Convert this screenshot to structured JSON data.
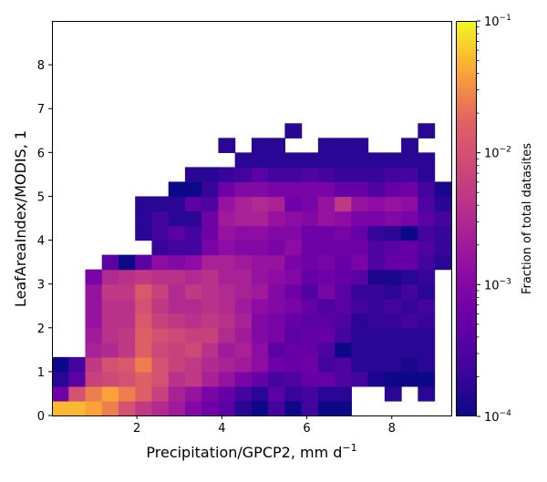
{
  "chart_data": {
    "type": "heatmap",
    "title": "",
    "xlabel": "Precipitation/GPCP2,  mm d",
    "xlabel_superscript": "−1",
    "ylabel": "LeafAreaIndex/MODIS,  1",
    "colorbar_label": "Fraction of total datasites",
    "colormap": "plasma",
    "color_scale": "log",
    "color_range": [
      0.0001,
      0.1
    ],
    "xlim": [
      0,
      9.4
    ],
    "ylim": [
      0,
      9.0
    ],
    "bin_width_x": 0.3915,
    "bin_height_y": 0.3333,
    "xticks": [
      2,
      4,
      6,
      8
    ],
    "xtick_labels": [
      "2",
      "4",
      "6",
      "8"
    ],
    "yticks": [
      0,
      1,
      2,
      3,
      4,
      5,
      6,
      7,
      8
    ],
    "ytick_labels": [
      "0",
      "1",
      "2",
      "3",
      "4",
      "5",
      "6",
      "7",
      "8"
    ],
    "colorbar_ticks": [
      0.0001,
      0.001,
      0.01,
      0.1
    ],
    "colorbar_tick_labels": [
      [
        "10",
        "−4"
      ],
      [
        "10",
        "−3"
      ],
      [
        "10",
        "−2"
      ],
      [
        "10",
        "−1"
      ]
    ],
    "colorbar_minor_ticks": [
      0.0002,
      0.0003,
      0.0004,
      0.0005,
      0.0006,
      0.0007,
      0.0008,
      0.0009,
      0.002,
      0.003,
      0.004,
      0.005,
      0.006,
      0.007,
      0.008,
      0.009,
      0.02,
      0.03,
      0.04,
      0.05,
      0.06,
      0.07,
      0.08,
      0.09
    ],
    "grid_log10": [
      [
        -1.3,
        -1.3,
        -1.4,
        -1.6,
        -2.0,
        -2.3,
        -2.5,
        -2.7,
        -3.0,
        -3.2,
        -3.4,
        -3.8,
        -4.0,
        -3.6,
        -4.0,
        -3.6,
        -4.0,
        -4.0,
        null,
        null,
        null,
        null,
        null,
        null
      ],
      [
        -3.2,
        -2.0,
        -1.6,
        -1.4,
        -1.6,
        -1.8,
        -2.2,
        -2.6,
        -2.8,
        -3.1,
        -3.3,
        -3.6,
        -3.8,
        -3.4,
        -3.7,
        -3.6,
        -3.8,
        -3.8,
        null,
        null,
        -3.8,
        null,
        -3.8,
        null
      ],
      [
        -3.8,
        -3.4,
        -2.2,
        -2.1,
        -2.0,
        -1.8,
        -2.0,
        -2.4,
        -2.3,
        -2.6,
        -2.8,
        -3.1,
        -3.3,
        -3.6,
        -3.5,
        -3.3,
        -3.3,
        -3.5,
        -3.6,
        -3.9,
        -4.0,
        -4.0,
        -4.0,
        null
      ],
      [
        -4.0,
        -3.6,
        -2.3,
        -2.0,
        -1.9,
        -1.6,
        -2.0,
        -2.2,
        -2.3,
        -2.5,
        -2.6,
        -2.7,
        -2.9,
        -3.2,
        -3.3,
        -3.2,
        -3.6,
        -3.5,
        -3.8,
        -3.8,
        -3.8,
        -3.9,
        -3.8,
        null
      ],
      [
        null,
        null,
        -2.6,
        -2.5,
        -2.3,
        -1.8,
        -2.1,
        -2.2,
        -2.1,
        -2.4,
        -2.7,
        -2.6,
        -2.9,
        -3.4,
        -3.3,
        -3.3,
        -3.5,
        -4.0,
        -3.8,
        -3.8,
        -3.8,
        -3.8,
        -3.8,
        null
      ],
      [
        null,
        null,
        -2.7,
        -2.4,
        -2.3,
        -1.8,
        -2.0,
        -2.1,
        -2.2,
        -2.2,
        -2.5,
        -2.7,
        -3.0,
        -3.1,
        -3.4,
        -3.3,
        -3.3,
        -3.6,
        -3.8,
        -3.8,
        -3.8,
        -3.8,
        -3.8,
        null
      ],
      [
        null,
        null,
        -2.8,
        -2.4,
        -2.4,
        -1.9,
        -2.2,
        -2.3,
        -2.4,
        -2.3,
        -2.4,
        -2.6,
        -3.0,
        -3.1,
        -3.3,
        -3.4,
        -3.4,
        -3.5,
        -3.8,
        -3.7,
        -3.7,
        -3.6,
        -3.7,
        null
      ],
      [
        null,
        null,
        -2.8,
        -2.4,
        -2.4,
        -2.0,
        -2.3,
        -2.5,
        -2.5,
        -2.4,
        -2.5,
        -2.7,
        -2.9,
        -3.0,
        -3.1,
        -3.3,
        -3.5,
        -3.4,
        -3.6,
        -3.7,
        -3.6,
        -3.7,
        -3.6,
        null
      ],
      [
        null,
        null,
        -2.8,
        -2.3,
        -2.3,
        -1.9,
        -2.2,
        -2.5,
        -2.3,
        -2.4,
        -2.5,
        -2.6,
        -2.7,
        -3.0,
        -3.2,
        -3.5,
        -3.1,
        -3.4,
        -3.7,
        -3.7,
        -3.8,
        -3.6,
        -3.8,
        null
      ],
      [
        null,
        null,
        -3.1,
        -2.5,
        -2.4,
        -2.3,
        -2.4,
        -2.4,
        -2.5,
        -2.4,
        -2.6,
        -2.6,
        -2.8,
        -2.9,
        -3.0,
        -3.3,
        -3.2,
        -3.3,
        -3.4,
        -3.9,
        -3.9,
        -3.8,
        -3.7,
        null
      ],
      [
        null,
        null,
        null,
        -3.4,
        -4.0,
        -3.4,
        -2.9,
        -3.0,
        -2.9,
        -2.6,
        -2.6,
        -2.7,
        -2.8,
        -2.8,
        -3.1,
        -3.2,
        -3.1,
        -3.3,
        -3.1,
        -3.5,
        -3.3,
        -3.3,
        -3.6,
        -3.8
      ],
      [
        null,
        null,
        null,
        null,
        null,
        null,
        -3.7,
        -3.6,
        -3.6,
        -3.1,
        -2.9,
        -3.0,
        -3.0,
        -3.1,
        -2.9,
        -3.2,
        -3.2,
        -3.2,
        -3.2,
        -3.5,
        -3.4,
        -3.3,
        -3.5,
        -3.7
      ],
      [
        null,
        null,
        null,
        null,
        null,
        -3.8,
        -3.6,
        -3.4,
        -3.6,
        -3.2,
        -2.8,
        -2.9,
        -2.9,
        -3.0,
        -3.0,
        -3.2,
        -3.2,
        -3.1,
        -3.3,
        -3.7,
        -3.8,
        -4.0,
        -3.6,
        -3.7
      ],
      [
        null,
        null,
        null,
        null,
        null,
        -3.8,
        -3.6,
        -3.8,
        -3.8,
        -3.2,
        -2.7,
        -2.6,
        -2.6,
        -2.8,
        -2.9,
        -3.0,
        -2.8,
        -2.9,
        -3.1,
        -3.1,
        -3.0,
        -3.1,
        -3.4,
        -3.6
      ],
      [
        null,
        null,
        null,
        null,
        null,
        -3.8,
        -3.8,
        -3.8,
        -3.4,
        -3.5,
        -2.8,
        -2.6,
        -2.5,
        -2.6,
        -3.2,
        -3.1,
        -2.8,
        -2.3,
        -2.8,
        -2.9,
        -2.8,
        -2.9,
        -3.5,
        -3.8
      ],
      [
        null,
        null,
        null,
        null,
        null,
        null,
        null,
        -4.0,
        -4.0,
        -3.7,
        -3.2,
        -3.0,
        -3.0,
        -3.1,
        -3.1,
        -3.1,
        -3.1,
        -3.3,
        -3.3,
        -3.5,
        -3.3,
        -3.2,
        -3.6,
        -3.9
      ],
      [
        null,
        null,
        null,
        null,
        null,
        null,
        null,
        null,
        -3.8,
        -3.8,
        -3.7,
        -3.6,
        -3.4,
        -3.6,
        -3.6,
        -3.5,
        -3.6,
        -3.7,
        -3.7,
        -3.7,
        -3.6,
        -3.6,
        -3.8,
        null
      ],
      [
        null,
        null,
        null,
        null,
        null,
        null,
        null,
        null,
        null,
        null,
        null,
        -3.8,
        -3.8,
        -3.8,
        -3.8,
        -3.8,
        -3.8,
        -3.8,
        -3.8,
        -3.8,
        -3.8,
        -3.8,
        -3.8,
        null
      ],
      [
        null,
        null,
        null,
        null,
        null,
        null,
        null,
        null,
        null,
        null,
        -3.8,
        null,
        -3.8,
        -3.8,
        null,
        null,
        -3.8,
        -3.8,
        -3.8,
        null,
        null,
        -3.8,
        null,
        null
      ],
      [
        null,
        null,
        null,
        null,
        null,
        null,
        null,
        null,
        null,
        null,
        null,
        null,
        null,
        null,
        -3.8,
        null,
        null,
        null,
        null,
        null,
        null,
        null,
        -3.8,
        null
      ]
    ]
  }
}
